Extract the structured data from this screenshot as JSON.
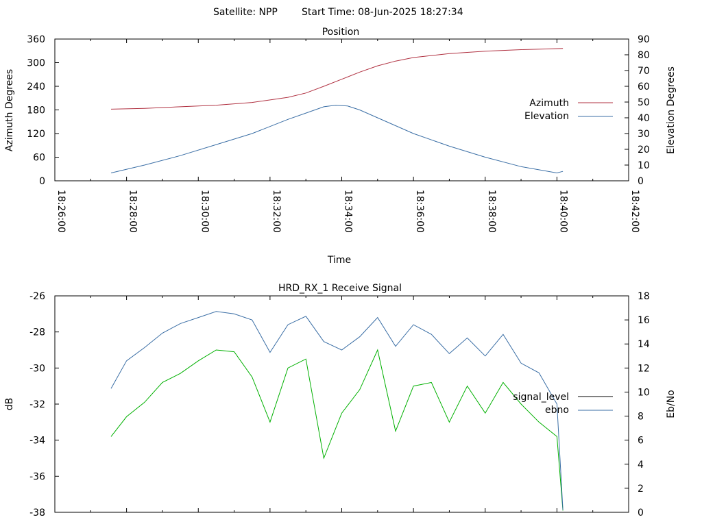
{
  "header": {
    "satellite_label": "Satellite: NPP",
    "start_time_label": "Start Time: 08-Jun-2025 18:27:34"
  },
  "colors": {
    "azimuth": "#b03040",
    "elevation": "#3a6ea5",
    "signal_level": "#000000",
    "ebno_blue": "#3a6ea5",
    "ebno_green": "#00b000"
  },
  "chart_data": [
    {
      "type": "line",
      "title": "Position",
      "xlabel": "Time",
      "ylabel": "Azimuth Degrees",
      "y2label": "Elevation Degrees",
      "x_ticks": [
        "18:26:00",
        "18:28:00",
        "18:30:00",
        "18:32:00",
        "18:34:00",
        "18:36:00",
        "18:38:00",
        "18:40:00",
        "18:42:00"
      ],
      "xlim": [
        "18:26:00",
        "18:42:00"
      ],
      "ylim": [
        0,
        360
      ],
      "y_ticks": [
        "0",
        "60",
        "120",
        "180",
        "240",
        "300",
        "360"
      ],
      "y2lim": [
        0,
        90
      ],
      "y2_ticks": [
        "0",
        "10",
        "20",
        "30",
        "40",
        "50",
        "60",
        "70",
        "80",
        "90"
      ],
      "legend_position": "right",
      "series": [
        {
          "name": "Azimuth",
          "axis": "y1",
          "x": [
            "18:27:34",
            "18:28:30",
            "18:29:30",
            "18:30:30",
            "18:31:30",
            "18:32:30",
            "18:33:00",
            "18:33:30",
            "18:34:00",
            "18:34:30",
            "18:35:00",
            "18:35:30",
            "18:36:00",
            "18:37:00",
            "18:38:00",
            "18:39:00",
            "18:40:10"
          ],
          "values": [
            182,
            184,
            188,
            192,
            199,
            212,
            223,
            240,
            258,
            276,
            292,
            304,
            313,
            323,
            329,
            333,
            336
          ]
        },
        {
          "name": "Elevation",
          "axis": "y2",
          "x": [
            "18:27:34",
            "18:28:30",
            "18:29:30",
            "18:30:30",
            "18:31:30",
            "18:32:30",
            "18:33:00",
            "18:33:30",
            "18:33:50",
            "18:34:10",
            "18:34:30",
            "18:35:00",
            "18:35:30",
            "18:36:00",
            "18:36:30",
            "18:37:00",
            "18:38:00",
            "18:39:00",
            "18:40:00",
            "18:40:10"
          ],
          "values": [
            5,
            10,
            16,
            23,
            30,
            39,
            43,
            47,
            48,
            47.5,
            45,
            40,
            35,
            30,
            26,
            22,
            15,
            9,
            5,
            6
          ]
        }
      ]
    },
    {
      "type": "line",
      "title": "HRD_RX_1 Receive Signal",
      "ylabel": "dB",
      "y2label": "Eb/No",
      "xlim": [
        "18:26:00",
        "18:42:00"
      ],
      "ylim": [
        -38,
        -26
      ],
      "y_ticks": [
        "-38",
        "-36",
        "-34",
        "-32",
        "-30",
        "-28",
        "-26"
      ],
      "y2lim": [
        0,
        18
      ],
      "y2_ticks": [
        "0",
        "2",
        "4",
        "6",
        "8",
        "10",
        "12",
        "14",
        "16",
        "18"
      ],
      "legend_position": "right",
      "series": [
        {
          "name": "ebno",
          "axis": "y2",
          "x": [
            "18:27:34",
            "18:28:00",
            "18:28:30",
            "18:29:00",
            "18:29:30",
            "18:30:00",
            "18:30:30",
            "18:31:00",
            "18:31:30",
            "18:32:00",
            "18:32:30",
            "18:33:00",
            "18:33:30",
            "18:34:00",
            "18:34:30",
            "18:35:00",
            "18:35:30",
            "18:36:00",
            "18:36:30",
            "18:37:00",
            "18:37:30",
            "18:38:00",
            "18:38:30",
            "18:39:00",
            "18:39:30",
            "18:40:00",
            "18:40:10"
          ],
          "values": [
            10.3,
            12.6,
            13.7,
            14.9,
            15.7,
            16.2,
            16.7,
            16.5,
            16.0,
            13.3,
            15.6,
            16.3,
            14.2,
            13.5,
            14.6,
            16.2,
            13.8,
            15.6,
            14.8,
            13.2,
            14.5,
            13.0,
            14.8,
            12.4,
            11.6,
            9.0,
            0.2
          ]
        },
        {
          "name": "signal_level",
          "axis": "y1",
          "x": [],
          "values": []
        }
      ],
      "unlabeled_series": [
        {
          "axis": "y1",
          "x": [
            "18:27:34",
            "18:28:00",
            "18:28:30",
            "18:29:00",
            "18:29:30",
            "18:30:00",
            "18:30:30",
            "18:31:00",
            "18:31:30",
            "18:32:00",
            "18:32:30",
            "18:33:00",
            "18:33:30",
            "18:34:00",
            "18:34:30",
            "18:35:00",
            "18:35:30",
            "18:36:00",
            "18:36:30",
            "18:37:00",
            "18:37:30",
            "18:38:00",
            "18:38:30",
            "18:39:00",
            "18:39:30",
            "18:40:00",
            "18:40:10"
          ],
          "values": [
            -33.8,
            -32.7,
            -31.9,
            -30.8,
            -30.3,
            -29.6,
            -29.0,
            -29.1,
            -30.5,
            -33.0,
            -30.0,
            -29.5,
            -35.0,
            -32.5,
            -31.2,
            -29.0,
            -33.5,
            -31.0,
            -30.8,
            -33.0,
            -31.0,
            -32.5,
            -30.8,
            -32.0,
            -33.0,
            -33.8,
            -37.9
          ]
        }
      ]
    }
  ]
}
